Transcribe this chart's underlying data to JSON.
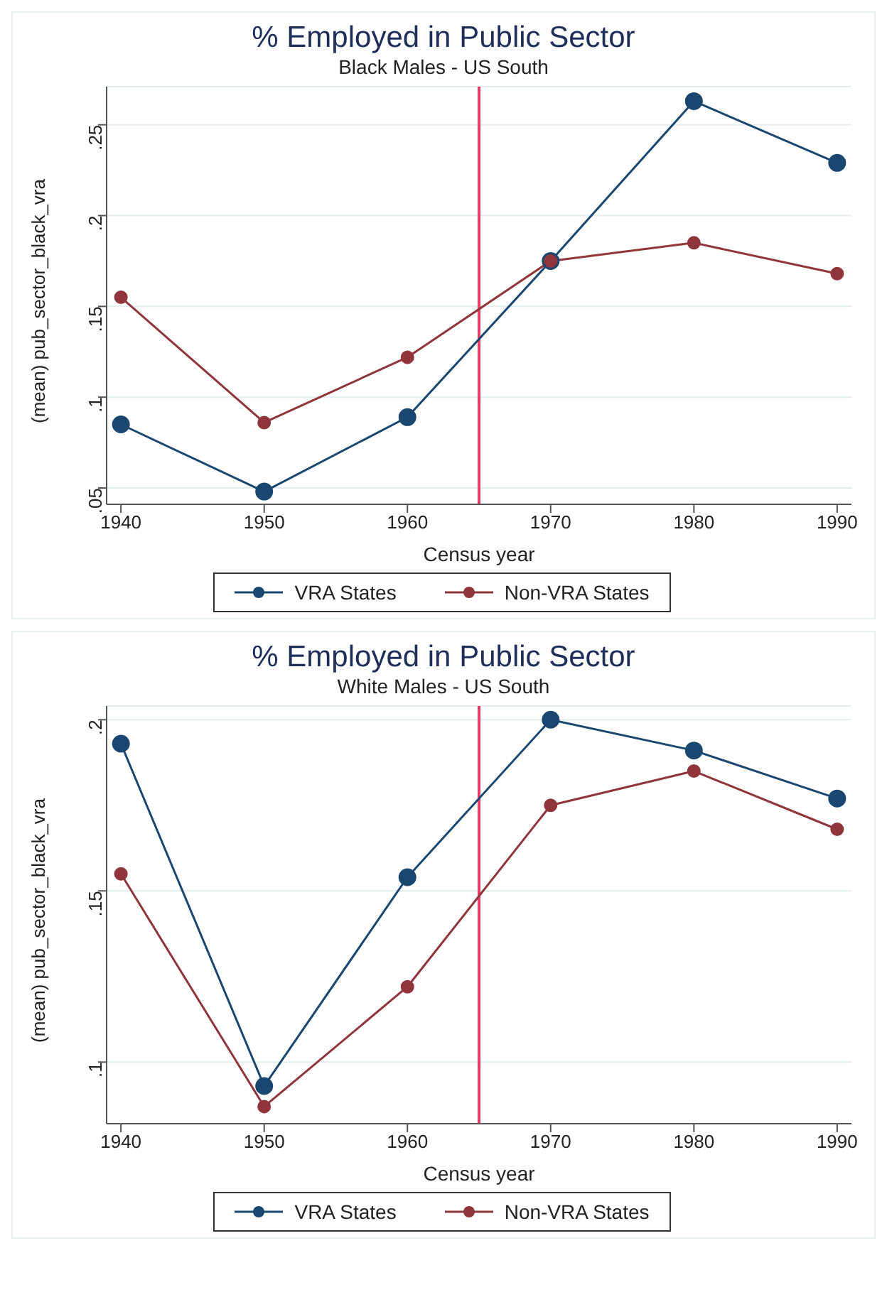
{
  "chart_data": [
    {
      "type": "line",
      "title": "% Employed in Public Sector",
      "subtitle": "Black Males - US South",
      "xlabel": "Census year",
      "ylabel": "(mean) pub_sector_black_vra",
      "x": [
        1940,
        1950,
        1960,
        1970,
        1980,
        1990
      ],
      "xlim": [
        1939,
        1991
      ],
      "xticks": [
        1940,
        1950,
        1960,
        1970,
        1980,
        1990
      ],
      "ylim": [
        0.041,
        0.271
      ],
      "yticks": [
        {
          "value": 0.05,
          "label": ".05"
        },
        {
          "value": 0.1,
          "label": ".1"
        },
        {
          "value": 0.15,
          "label": ".15"
        },
        {
          "value": 0.2,
          "label": ".2"
        },
        {
          "value": 0.25,
          "label": ".25"
        }
      ],
      "grid": "y",
      "legend": "bottom",
      "marker": "circle",
      "line_style": "solid",
      "ref_lines": [
        {
          "axis": "x",
          "value": 1965,
          "color": "#e0406c"
        }
      ],
      "series": [
        {
          "name": "VRA States",
          "color": "#1a476f",
          "values": [
            0.085,
            0.048,
            0.089,
            0.175,
            0.263,
            0.229
          ]
        },
        {
          "name": "Non-VRA States",
          "color": "#90353b",
          "values": [
            0.155,
            0.086,
            0.122,
            0.175,
            0.185,
            0.168
          ]
        }
      ]
    },
    {
      "type": "line",
      "title": "% Employed in Public Sector",
      "subtitle": "White Males - US South",
      "xlabel": "Census year",
      "ylabel": "(mean) pub_sector_black_vra",
      "x": [
        1940,
        1950,
        1960,
        1970,
        1980,
        1990
      ],
      "xlim": [
        1939,
        1991
      ],
      "xticks": [
        1940,
        1950,
        1960,
        1970,
        1980,
        1990
      ],
      "ylim": [
        0.082,
        0.204
      ],
      "yticks": [
        {
          "value": 0.1,
          "label": ".1"
        },
        {
          "value": 0.15,
          "label": ".15"
        },
        {
          "value": 0.2,
          "label": ".2"
        }
      ],
      "grid": "y",
      "legend": "bottom",
      "marker": "circle",
      "line_style": "solid",
      "ref_lines": [
        {
          "axis": "x",
          "value": 1965,
          "color": "#e0406c"
        }
      ],
      "series": [
        {
          "name": "VRA States",
          "color": "#1a476f",
          "values": [
            0.193,
            0.093,
            0.154,
            0.2,
            0.191,
            0.177
          ]
        },
        {
          "name": "Non-VRA States",
          "color": "#90353b",
          "values": [
            0.155,
            0.087,
            0.122,
            0.175,
            0.185,
            0.168
          ]
        }
      ]
    }
  ]
}
